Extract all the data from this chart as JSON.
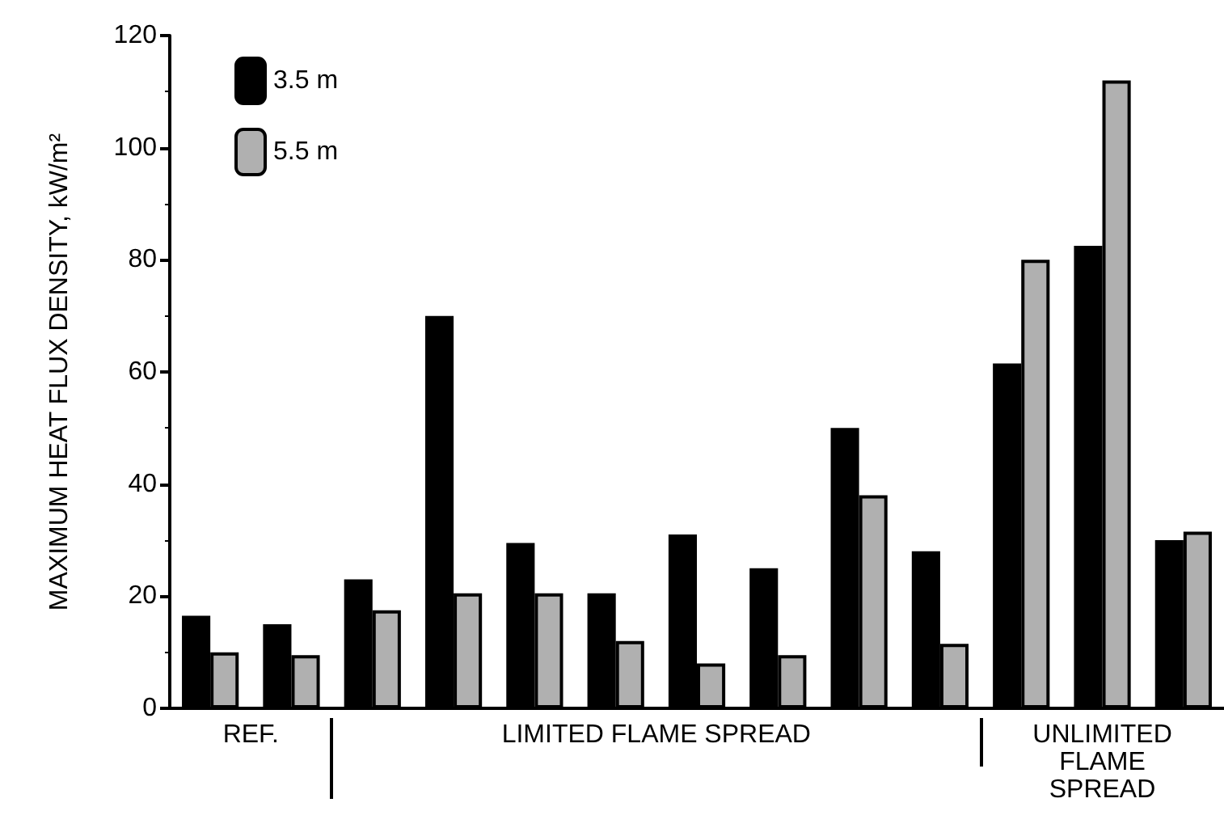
{
  "chart_data": {
    "type": "bar",
    "ylabel": "MAXIMUM HEAT FLUX DENSITY, kW/m²",
    "categories": [
      null,
      null,
      null,
      null,
      null,
      null,
      null,
      null,
      null,
      null,
      null,
      null,
      null
    ],
    "series": [
      {
        "name": "3.5 m",
        "color": "#000000",
        "values": [
          16.5,
          15,
          23,
          70,
          29.5,
          20.5,
          31,
          25,
          50,
          28,
          61.5,
          82.5,
          30
        ]
      },
      {
        "name": "5.5 m",
        "color": "#b0b0b0",
        "values": [
          10,
          9.5,
          17.5,
          20.5,
          20.5,
          12,
          8,
          9.5,
          38,
          11.5,
          80,
          112,
          31.5
        ]
      }
    ],
    "ylim": [
      0,
      120
    ],
    "yticks": [
      0,
      20,
      40,
      60,
      80,
      100,
      120
    ],
    "annotations": [
      "REF.",
      "LIMITED FLAME SPREAD",
      "UNLIMITED\nFLAME\nSPREAD"
    ],
    "legend": "top left",
    "grid": false
  }
}
